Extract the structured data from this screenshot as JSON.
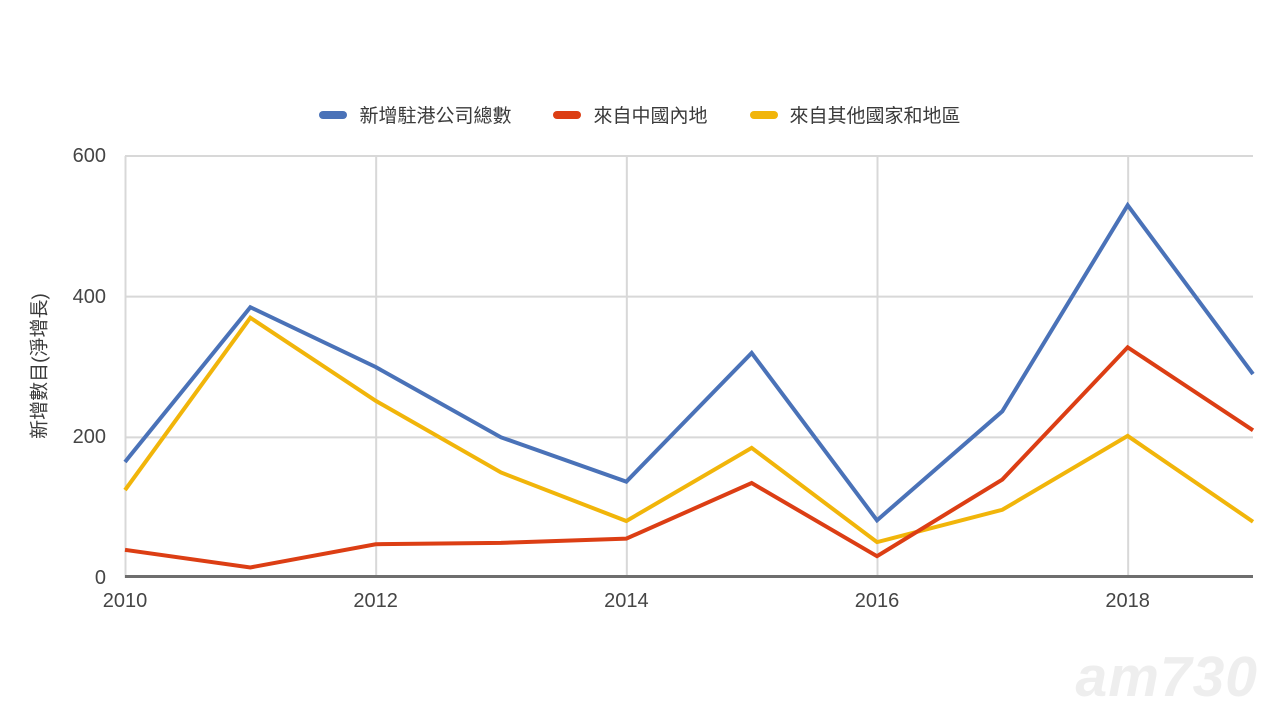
{
  "chart_data": {
    "type": "line",
    "x": [
      2010,
      2011,
      2012,
      2013,
      2014,
      2015,
      2016,
      2017,
      2018,
      2019
    ],
    "series": [
      {
        "name": "新增駐港公司總數",
        "color": "#4a72b8",
        "values": [
          165,
          385,
          300,
          200,
          137,
          320,
          82,
          237,
          530,
          290
        ]
      },
      {
        "name": "來自中國內地",
        "color": "#dc3e14",
        "values": [
          40,
          15,
          48,
          50,
          56,
          135,
          31,
          140,
          328,
          210
        ]
      },
      {
        "name": "來自其他國家和地區",
        "color": "#f1b50a",
        "values": [
          125,
          370,
          252,
          150,
          81,
          185,
          51,
          97,
          202,
          80
        ]
      }
    ],
    "title": "",
    "xlabel": "",
    "ylabel": "新增數目(淨增長)",
    "ylim": [
      0,
      600
    ],
    "yticks": [
      0,
      200,
      400,
      600
    ],
    "xticks": [
      2010,
      2012,
      2014,
      2016,
      2018
    ],
    "grid": true,
    "legend_position": "top"
  },
  "colors": {
    "gridline": "#d8d8d8",
    "axis_line": "#6e6e6e",
    "tick_label": "#454545",
    "legend_label": "#3a3a3a"
  },
  "watermark": {
    "text": "am730"
  }
}
